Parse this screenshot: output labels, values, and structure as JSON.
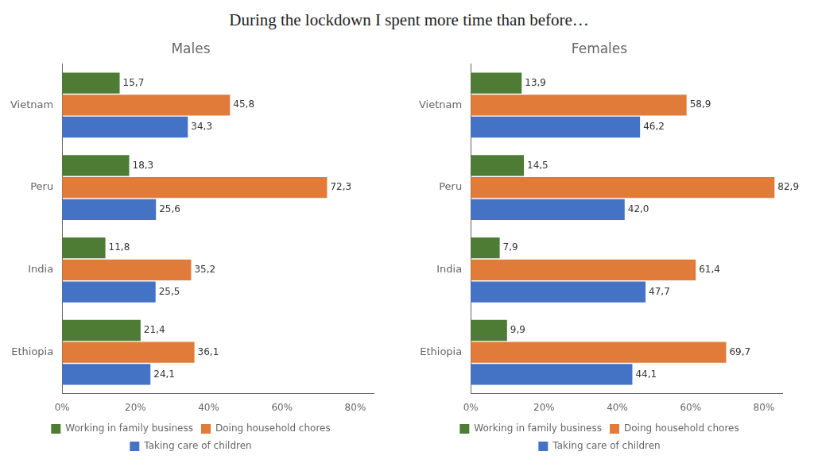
{
  "title": "During the lockdown I spent more time than before…",
  "chart_data": [
    {
      "type": "bar",
      "orientation": "horizontal",
      "title": "Males",
      "categories": [
        "Vietnam",
        "Peru",
        "India",
        "Ethiopia"
      ],
      "series": [
        {
          "name": "Working in family business",
          "color": "#4e7c34",
          "values": [
            15.7,
            18.3,
            11.8,
            21.4
          ],
          "value_labels": [
            "15,7",
            "18,3",
            "11,8",
            "21,4"
          ]
        },
        {
          "name": "Doing household chores",
          "color": "#e07b39",
          "values": [
            45.8,
            72.3,
            35.2,
            36.1
          ],
          "value_labels": [
            "45,8",
            "72,3",
            "35,2",
            "36,1"
          ]
        },
        {
          "name": "Taking care of children",
          "color": "#4472c4",
          "values": [
            34.3,
            25.6,
            25.5,
            24.1
          ],
          "value_labels": [
            "34,3",
            "25,6",
            "25,5",
            "24,1"
          ]
        }
      ],
      "xlim": [
        0,
        85
      ],
      "xticks": [
        {
          "value": 0,
          "label": "0%"
        },
        {
          "value": 20,
          "label": "20%"
        },
        {
          "value": 40,
          "label": "40%"
        },
        {
          "value": 60,
          "label": "60%"
        },
        {
          "value": 80,
          "label": "80%"
        }
      ],
      "data_labels": true,
      "grid": false,
      "legend": "bottom"
    },
    {
      "type": "bar",
      "orientation": "horizontal",
      "title": "Females",
      "categories": [
        "Vietnam",
        "Peru",
        "India",
        "Ethiopia"
      ],
      "series": [
        {
          "name": "Working in family business",
          "color": "#4e7c34",
          "values": [
            13.9,
            14.5,
            7.9,
            9.9
          ],
          "value_labels": [
            "13,9",
            "14,5",
            "7,9",
            "9,9"
          ]
        },
        {
          "name": "Doing household chores",
          "color": "#e07b39",
          "values": [
            58.9,
            82.9,
            61.4,
            69.7
          ],
          "value_labels": [
            "58,9",
            "82,9",
            "61,4",
            "69,7"
          ]
        },
        {
          "name": "Taking care of children",
          "color": "#4472c4",
          "values": [
            46.2,
            42.0,
            47.7,
            44.1
          ],
          "value_labels": [
            "46,2",
            "42,0",
            "47,7",
            "44,1"
          ]
        }
      ],
      "xlim": [
        0,
        85
      ],
      "xticks": [
        {
          "value": 0,
          "label": "0%"
        },
        {
          "value": 20,
          "label": "20%"
        },
        {
          "value": 40,
          "label": "40%"
        },
        {
          "value": 60,
          "label": "60%"
        },
        {
          "value": 80,
          "label": "80%"
        }
      ],
      "data_labels": true,
      "grid": false,
      "legend": "bottom"
    }
  ]
}
